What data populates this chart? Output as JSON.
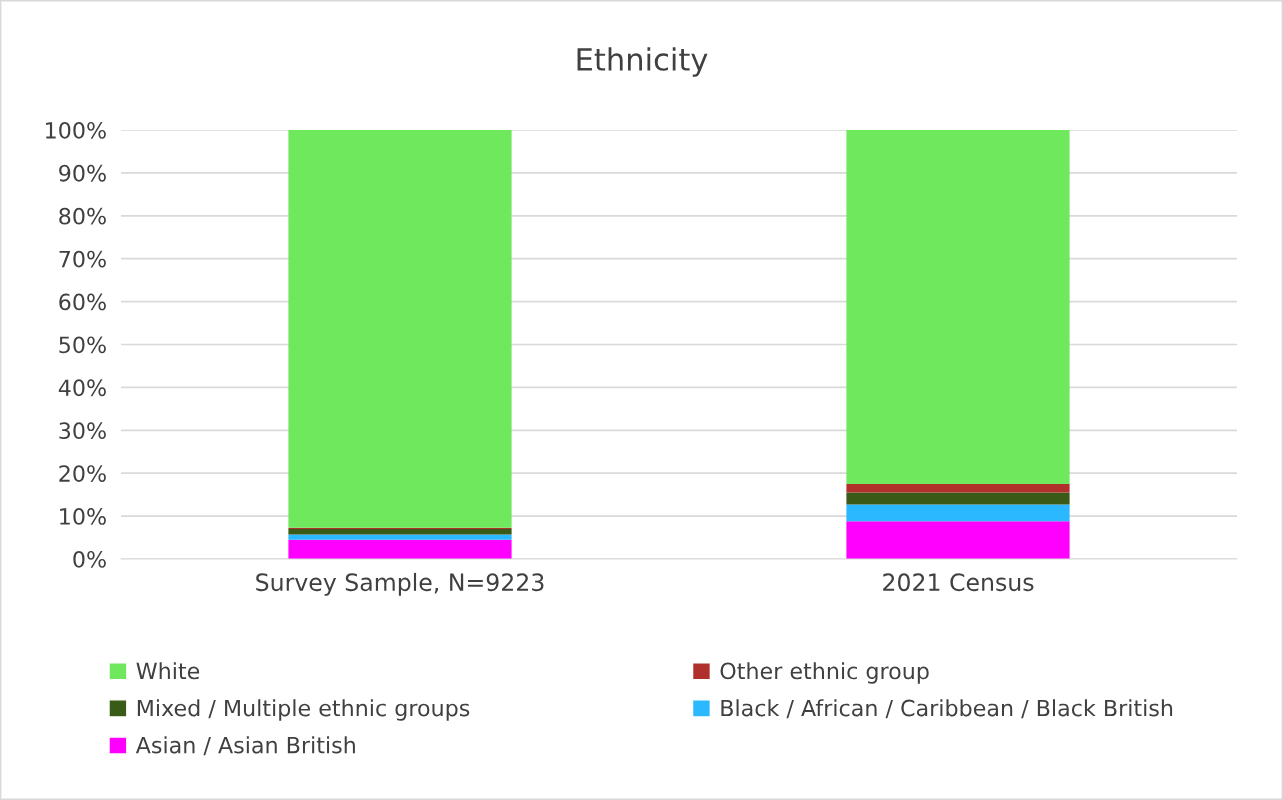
{
  "chart_data": {
    "type": "bar",
    "title": "Ethnicity",
    "stacked": true,
    "categories": [
      "Survey Sample, N=9223",
      "2021 Census"
    ],
    "series": [
      {
        "name": "Asian / Asian British",
        "color": "#ff00ff",
        "values": [
          4.5,
          8.8
        ]
      },
      {
        "name": "Black / African / Caribbean / Black British",
        "color": "#2cb8ff",
        "values": [
          1.2,
          3.9
        ]
      },
      {
        "name": "Mixed / Multiple ethnic groups",
        "color": "#3a5a18",
        "values": [
          1.3,
          2.8
        ]
      },
      {
        "name": "Other ethnic group",
        "color": "#b0302c",
        "values": [
          0.3,
          2.0
        ]
      },
      {
        "name": "White",
        "color": "#70e85e",
        "values": [
          92.7,
          82.5
        ]
      }
    ],
    "ylim": [
      0,
      100
    ],
    "yticks": [
      {
        "value": 0,
        "label": "0%"
      },
      {
        "value": 10,
        "label": "10%"
      },
      {
        "value": 20,
        "label": "20%"
      },
      {
        "value": 30,
        "label": "30%"
      },
      {
        "value": 40,
        "label": "40%"
      },
      {
        "value": 50,
        "label": "50%"
      },
      {
        "value": 60,
        "label": "60%"
      },
      {
        "value": 70,
        "label": "70%"
      },
      {
        "value": 80,
        "label": "80%"
      },
      {
        "value": 90,
        "label": "90%"
      },
      {
        "value": 100,
        "label": "100%"
      }
    ],
    "grid": "y",
    "legend": "bottom"
  }
}
